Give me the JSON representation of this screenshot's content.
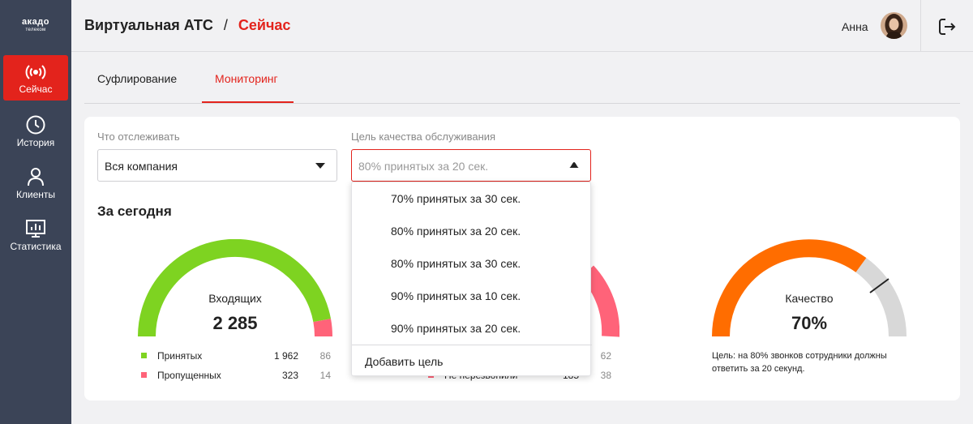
{
  "logo": {
    "line1": "акадо",
    "line2": "телеком"
  },
  "sidebar": {
    "items": [
      {
        "label": "Сейчас",
        "icon": "broadcast-icon",
        "active": true
      },
      {
        "label": "История",
        "icon": "clock-icon",
        "active": false
      },
      {
        "label": "Клиенты",
        "icon": "user-icon",
        "active": false
      },
      {
        "label": "Статистика",
        "icon": "chart-icon",
        "active": false
      }
    ]
  },
  "header": {
    "section": "Виртуальная АТС",
    "separator": "/",
    "current": "Сейчас",
    "user_name": "Анна"
  },
  "tabs": [
    {
      "label": "Суфлирование",
      "active": false
    },
    {
      "label": "Мониторинг",
      "active": true
    }
  ],
  "filters": {
    "track_label": "Что отслеживать",
    "track_value": "Вся компания",
    "goal_label": "Цель качества обслуживания",
    "goal_placeholder": "80% принятых за 20 сек."
  },
  "dropdown": {
    "options": [
      "70% принятых за 30 сек.",
      "80% принятых за 20 сек.",
      "80% принятых за 30 сек.",
      "90% принятых за 10 сек.",
      "90% принятых за 20 сек."
    ],
    "add_label": "Добавить цель"
  },
  "today": {
    "title": "За сегодня",
    "incoming": {
      "label": "Входящих",
      "value": "2 285",
      "rows": [
        {
          "label": "Принятых",
          "count": "1 962",
          "extra": "86",
          "color": "#7ed321"
        },
        {
          "label": "Пропущенных",
          "count": "323",
          "extra": "14",
          "color": "#ff6379"
        }
      ]
    },
    "middle": {
      "rows": [
        {
          "label": "",
          "count": "",
          "extra": "62",
          "color": "#ff6379"
        },
        {
          "label": "Не перезвонили",
          "count": "185",
          "extra": "38",
          "color": "#ff6379"
        }
      ]
    },
    "quality": {
      "label": "Качество",
      "value": "70%",
      "goal_text": "Цель: на 80% звонков сотрудники должны ответить за 20 секунд."
    }
  },
  "colors": {
    "accent": "#e3231c",
    "sidebar": "#3b4457",
    "green": "#7ed321",
    "pink": "#ff6379",
    "orange": "#ff6d00",
    "gray": "#d8d8d8"
  }
}
